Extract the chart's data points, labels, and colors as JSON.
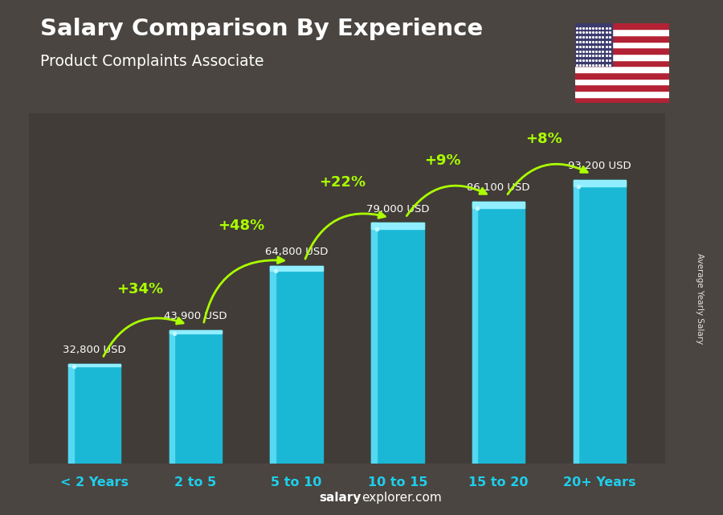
{
  "title": "Salary Comparison By Experience",
  "subtitle": "Product Complaints Associate",
  "categories": [
    "< 2 Years",
    "2 to 5",
    "5 to 10",
    "10 to 15",
    "15 to 20",
    "20+ Years"
  ],
  "values": [
    32800,
    43900,
    64800,
    79000,
    86100,
    93200
  ],
  "value_labels": [
    "32,800 USD",
    "43,900 USD",
    "64,800 USD",
    "79,000 USD",
    "86,100 USD",
    "93,200 USD"
  ],
  "pct_changes": [
    "+34%",
    "+48%",
    "+22%",
    "+9%",
    "+8%"
  ],
  "bar_color_main": "#1DB8D4",
  "bar_color_left": "#5CD8F0",
  "bar_color_top": "#8EEEFF",
  "pct_color": "#AAFF00",
  "value_label_color": "#FFFFFF",
  "title_color": "#FFFFFF",
  "subtitle_color": "#FFFFFF",
  "xlabel_color": "#1ECFED",
  "ylabel_text": "Average Yearly Salary",
  "footer_salary_bold": "salary",
  "footer_rest": "explorer.com",
  "bg_color": "#3a3a3a",
  "ylim": [
    0,
    115000
  ],
  "bar_width": 0.52
}
